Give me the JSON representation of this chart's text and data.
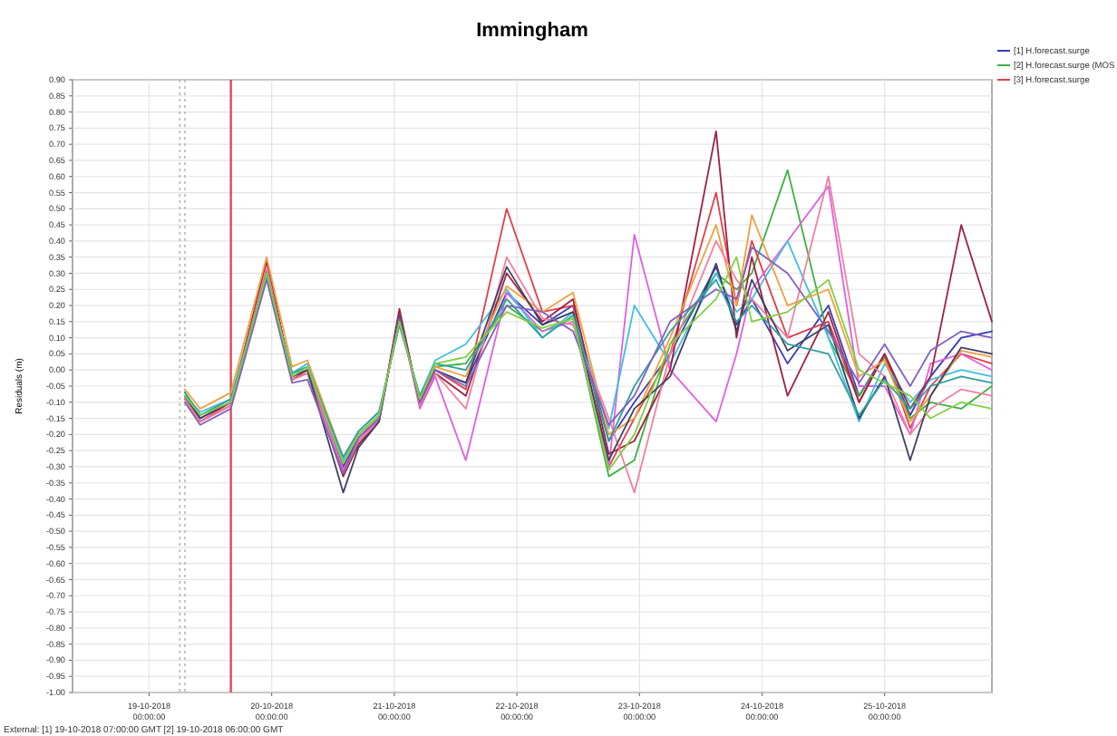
{
  "chart_data": {
    "type": "line",
    "title": "Immingham",
    "ylabel": "Residuals (m)",
    "annotations": [
      "External: [1] 19-10-2018 07:00:00 GMT [2] 19-10-2018 06:00:00 GMT"
    ],
    "x": [
      "2018-10-19T07:00",
      "2018-10-19T10:00",
      "2018-10-19T16:00",
      "2018-10-19T23:00",
      "2018-10-20T04:00",
      "2018-10-20T07:00",
      "2018-10-20T14:00",
      "2018-10-20T17:00",
      "2018-10-20T21:00",
      "2018-10-21T01:00",
      "2018-10-21T05:00",
      "2018-10-21T08:00",
      "2018-10-21T14:00",
      "2018-10-21T22:00",
      "2018-10-22T05:00",
      "2018-10-22T11:00",
      "2018-10-22T18:00",
      "2018-10-22T23:00",
      "2018-10-23T06:00",
      "2018-10-23T15:00",
      "2018-10-23T19:00",
      "2018-10-23T22:00",
      "2018-10-24T05:00",
      "2018-10-24T13:00",
      "2018-10-24T19:00",
      "2018-10-25T00:00",
      "2018-10-25T05:00",
      "2018-10-25T09:00",
      "2018-10-25T15:00",
      "2018-10-25T21:00"
    ],
    "series": [
      {
        "name": "[1] H.forecast.surge",
        "color": "#3a3ab8",
        "values": [
          -0.08,
          -0.15,
          -0.1,
          0.31,
          -0.02,
          0.0,
          -0.3,
          -0.21,
          -0.15,
          0.16,
          -0.1,
          0.0,
          -0.04,
          0.24,
          0.14,
          0.2,
          -0.22,
          -0.1,
          0.05,
          0.32,
          0.14,
          0.22,
          0.02,
          0.2,
          -0.08,
          0.05,
          -0.14,
          -0.02,
          0.1,
          0.12
        ]
      },
      {
        "name": "[2] H.forecast.surge (MOS",
        "color": "#3cb043",
        "values": [
          -0.07,
          -0.14,
          -0.1,
          0.3,
          -0.01,
          0.01,
          -0.29,
          -0.2,
          -0.14,
          0.15,
          -0.09,
          0.01,
          0.02,
          0.2,
          0.12,
          0.16,
          -0.33,
          -0.28,
          0.08,
          0.3,
          0.25,
          0.3,
          0.62,
          0.1,
          -0.08,
          0.04,
          -0.15,
          -0.1,
          -0.12,
          -0.05
        ]
      },
      {
        "name": "[3] H.forecast.surge",
        "color": "#e0404a",
        "values": [
          -0.09,
          -0.16,
          -0.1,
          0.33,
          -0.03,
          0.0,
          -0.31,
          -0.22,
          -0.16,
          0.18,
          -0.11,
          0.0,
          -0.06,
          0.5,
          0.18,
          0.2,
          -0.3,
          -0.15,
          0.05,
          0.55,
          0.2,
          0.4,
          0.1,
          0.15,
          -0.1,
          0.05,
          -0.18,
          -0.05,
          0.05,
          0.02
        ]
      },
      {
        "color": "#e060e0",
        "values": [
          -0.08,
          -0.14,
          -0.09,
          0.32,
          -0.02,
          0.01,
          -0.31,
          -0.22,
          -0.15,
          0.17,
          -0.12,
          -0.02,
          -0.28,
          0.24,
          0.12,
          0.15,
          -0.3,
          0.42,
          0.0,
          -0.16,
          0.05,
          0.25,
          0.4,
          0.57,
          -0.05,
          -0.05,
          -0.2,
          0.02,
          0.05,
          0.0
        ]
      },
      {
        "color": "#40c0e0",
        "values": [
          -0.08,
          -0.13,
          -0.09,
          0.3,
          -0.01,
          0.02,
          -0.28,
          -0.19,
          -0.13,
          0.14,
          -0.08,
          0.03,
          0.08,
          0.25,
          0.1,
          0.18,
          -0.18,
          0.2,
          0.02,
          0.3,
          0.18,
          0.22,
          0.4,
          0.1,
          -0.16,
          0.02,
          -0.1,
          -0.03,
          0.0,
          -0.02
        ]
      },
      {
        "color": "#a02040",
        "values": [
          -0.09,
          -0.16,
          -0.11,
          0.34,
          -0.03,
          -0.01,
          -0.33,
          -0.23,
          -0.16,
          0.19,
          -0.11,
          -0.01,
          -0.08,
          0.3,
          0.15,
          0.22,
          -0.26,
          -0.22,
          0.0,
          0.74,
          0.1,
          0.35,
          -0.08,
          0.18,
          -0.1,
          0.05,
          -0.12,
          -0.02,
          0.45,
          0.15
        ]
      },
      {
        "color": "#f0a040",
        "values": [
          -0.06,
          -0.12,
          -0.07,
          0.35,
          0.01,
          0.03,
          -0.27,
          -0.2,
          -0.15,
          0.16,
          -0.1,
          0.01,
          -0.02,
          0.26,
          0.18,
          0.24,
          -0.2,
          -0.15,
          0.1,
          0.45,
          0.2,
          0.48,
          0.2,
          0.25,
          -0.02,
          0.03,
          -0.16,
          -0.08,
          0.06,
          0.04
        ]
      },
      {
        "color": "#f080a0",
        "values": [
          -0.09,
          -0.16,
          -0.11,
          0.32,
          -0.03,
          -0.01,
          -0.32,
          -0.22,
          -0.16,
          0.17,
          -0.11,
          -0.01,
          -0.12,
          0.35,
          0.16,
          0.14,
          -0.15,
          -0.38,
          0.05,
          0.4,
          0.28,
          0.22,
          0.1,
          0.6,
          0.05,
          -0.02,
          -0.2,
          -0.12,
          -0.06,
          -0.08
        ]
      },
      {
        "color": "#404060",
        "values": [
          -0.08,
          -0.15,
          -0.1,
          0.3,
          -0.02,
          0.0,
          -0.38,
          -0.24,
          -0.16,
          0.17,
          -0.1,
          0.0,
          -0.04,
          0.32,
          0.14,
          0.18,
          -0.28,
          -0.12,
          -0.02,
          0.33,
          0.12,
          0.28,
          0.06,
          0.14,
          -0.15,
          -0.02,
          -0.28,
          -0.08,
          0.07,
          0.05
        ]
      },
      {
        "color": "#30a0a0",
        "values": [
          -0.07,
          -0.14,
          -0.09,
          0.29,
          -0.01,
          0.01,
          -0.27,
          -0.19,
          -0.13,
          0.14,
          -0.08,
          0.02,
          0.0,
          0.22,
          0.1,
          0.17,
          -0.22,
          -0.05,
          0.12,
          0.28,
          0.15,
          0.2,
          0.08,
          0.05,
          -0.14,
          -0.03,
          -0.12,
          -0.05,
          -0.02,
          -0.04
        ]
      },
      {
        "color": "#8060c0",
        "values": [
          -0.1,
          -0.17,
          -0.12,
          0.28,
          -0.04,
          -0.03,
          -0.32,
          -0.21,
          -0.15,
          0.16,
          -0.1,
          0.0,
          -0.05,
          0.2,
          0.18,
          0.12,
          -0.17,
          -0.08,
          0.15,
          0.25,
          0.22,
          0.38,
          0.3,
          0.12,
          -0.04,
          0.08,
          -0.05,
          0.06,
          0.12,
          0.1
        ]
      },
      {
        "color": "#80d040",
        "values": [
          -0.08,
          -0.14,
          -0.1,
          0.3,
          -0.02,
          0.01,
          -0.29,
          -0.2,
          -0.14,
          0.15,
          -0.09,
          0.02,
          0.04,
          0.18,
          0.13,
          0.16,
          -0.31,
          -0.2,
          0.08,
          0.22,
          0.35,
          0.15,
          0.18,
          0.28,
          0.0,
          -0.04,
          -0.08,
          -0.15,
          -0.1,
          -0.12
        ]
      }
    ],
    "xlim": [
      "2018-10-18T09:00",
      "2018-10-25T21:00"
    ],
    "xticks": [
      {
        "value": "2018-10-19T00:00",
        "label": "19-10-2018 00:00:00"
      },
      {
        "value": "2018-10-20T00:00",
        "label": "20-10-2018 00:00:00"
      },
      {
        "value": "2018-10-21T00:00",
        "label": "21-10-2018 00:00:00"
      },
      {
        "value": "2018-10-22T00:00",
        "label": "22-10-2018 00:00:00"
      },
      {
        "value": "2018-10-23T00:00",
        "label": "23-10-2018 00:00:00"
      },
      {
        "value": "2018-10-24T00:00",
        "label": "24-10-2018 00:00:00"
      },
      {
        "value": "2018-10-25T00:00",
        "label": "25-10-2018 00:00:00"
      }
    ],
    "ylim": [
      -1.0,
      0.9
    ],
    "yticks": [
      {
        "value": 0.9,
        "label": "0.90"
      },
      {
        "value": 0.85,
        "label": "0.85"
      },
      {
        "value": 0.8,
        "label": "0.80"
      },
      {
        "value": 0.75,
        "label": "0.75"
      },
      {
        "value": 0.7,
        "label": "0.70"
      },
      {
        "value": 0.65,
        "label": "0.65"
      },
      {
        "value": 0.6,
        "label": "0.60"
      },
      {
        "value": 0.55,
        "label": "0.55"
      },
      {
        "value": 0.5,
        "label": "0.50"
      },
      {
        "value": 0.45,
        "label": "0.45"
      },
      {
        "value": 0.4,
        "label": "0.40"
      },
      {
        "value": 0.35,
        "label": "0.35"
      },
      {
        "value": 0.3,
        "label": "0.30"
      },
      {
        "value": 0.25,
        "label": "0.25"
      },
      {
        "value": 0.2,
        "label": "0.20"
      },
      {
        "value": 0.15,
        "label": "0.15"
      },
      {
        "value": 0.1,
        "label": "0.10"
      },
      {
        "value": 0.05,
        "label": "0.05"
      },
      {
        "value": 0,
        "label": "0.00"
      },
      {
        "value": -0.05,
        "label": "-0.05"
      },
      {
        "value": -0.1,
        "label": "-0.10"
      },
      {
        "value": -0.15,
        "label": "-0.15"
      },
      {
        "value": -0.2,
        "label": "-0.20"
      },
      {
        "value": -0.25,
        "label": "-0.25"
      },
      {
        "value": -0.3,
        "label": "-0.30"
      },
      {
        "value": -0.35,
        "label": "-0.35"
      },
      {
        "value": -0.4,
        "label": "-0.40"
      },
      {
        "value": -0.45,
        "label": "-0.45"
      },
      {
        "value": -0.5,
        "label": "-0.50"
      },
      {
        "value": -0.55,
        "label": "-0.55"
      },
      {
        "value": -0.6,
        "label": "-0.60"
      },
      {
        "value": -0.65,
        "label": "-0.65"
      },
      {
        "value": -0.7,
        "label": "-0.70"
      },
      {
        "value": -0.75,
        "label": "-0.75"
      },
      {
        "value": -0.8,
        "label": "-0.80"
      },
      {
        "value": -0.85,
        "label": "-0.85"
      },
      {
        "value": -0.9,
        "label": "-0.90"
      },
      {
        "value": -0.95,
        "label": "-0.95"
      },
      {
        "value": -1.0,
        "label": "-1.00"
      }
    ],
    "ref_lines": [
      {
        "axis": "x",
        "value": "2018-10-19T06:00",
        "color": "#b8b8b8",
        "line_style": "dotted"
      },
      {
        "axis": "x",
        "value": "2018-10-19T07:00",
        "color": "#b8b8b8",
        "line_style": "dotted"
      },
      {
        "axis": "x",
        "value": "2018-10-19T16:00",
        "color": "#e04858",
        "line_style": "solid"
      }
    ],
    "grid": true,
    "legend": "right",
    "line_style": "solid",
    "marker": "none"
  }
}
